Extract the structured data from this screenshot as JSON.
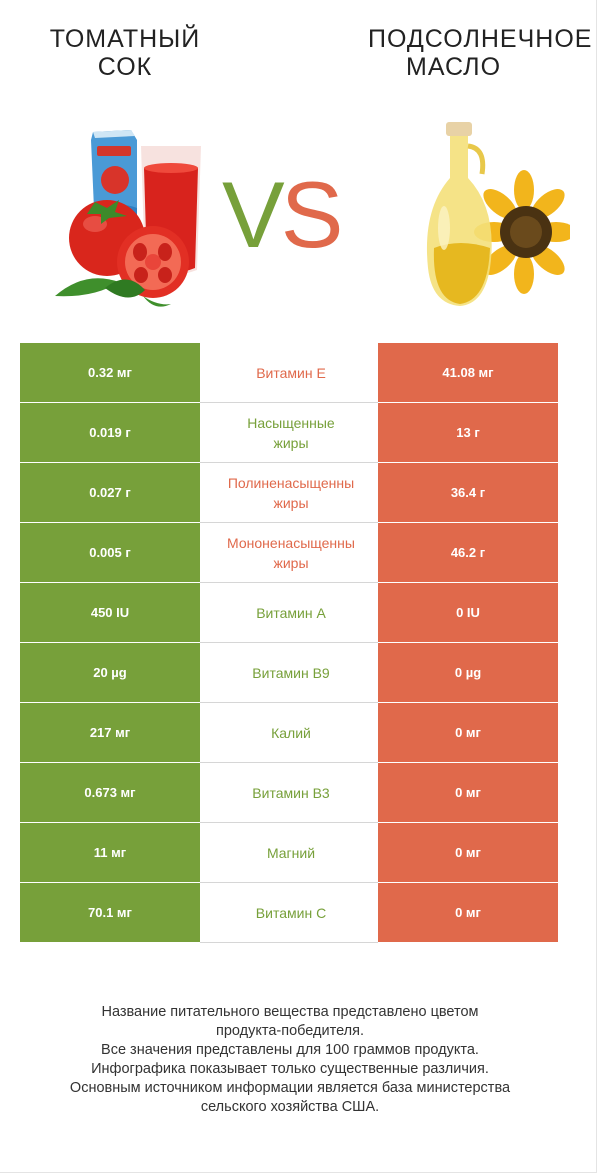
{
  "header": {
    "left_title_line1": "ТОМАТНЫЙ",
    "left_title_line2": "СОК",
    "right_title_line1": "ПОДСОЛНЕЧНОЕ",
    "right_title_line2": "МАСЛО",
    "vs_v": "V",
    "vs_s": "S"
  },
  "colors": {
    "left": "#77a03a",
    "right": "#e0694b"
  },
  "icons": {
    "left": "tomato-juice-illustration",
    "right": "sunflower-oil-illustration"
  },
  "rows": [
    {
      "left": "0.32 мг",
      "label": "Витамин E",
      "label_line2": "",
      "right": "41.08 мг",
      "winner": "right"
    },
    {
      "left": "0.019 г",
      "label": "Насыщенные",
      "label_line2": "жиры",
      "right": "13 г",
      "winner": "left"
    },
    {
      "left": "0.027 г",
      "label": "Полиненасыщенны",
      "label_line2": "жиры",
      "right": "36.4 г",
      "winner": "right"
    },
    {
      "left": "0.005 г",
      "label": "Мононенасыщенны",
      "label_line2": "жиры",
      "right": "46.2 г",
      "winner": "right"
    },
    {
      "left": "450 IU",
      "label": "Витамин A",
      "label_line2": "",
      "right": "0 IU",
      "winner": "left"
    },
    {
      "left": "20 µg",
      "label": "Витамин B9",
      "label_line2": "",
      "right": "0 µg",
      "winner": "left"
    },
    {
      "left": "217 мг",
      "label": "Калий",
      "label_line2": "",
      "right": "0 мг",
      "winner": "left"
    },
    {
      "left": "0.673 мг",
      "label": "Витамин B3",
      "label_line2": "",
      "right": "0 мг",
      "winner": "left"
    },
    {
      "left": "11 мг",
      "label": "Магний",
      "label_line2": "",
      "right": "0 мг",
      "winner": "left"
    },
    {
      "left": "70.1 мг",
      "label": "Витамин C",
      "label_line2": "",
      "right": "0 мг",
      "winner": "left"
    }
  ],
  "footnote": {
    "line1": "Название питательного вещества представлено цветом",
    "line2": "продукта-победителя.",
    "line3": "Все значения представлены для 100 граммов продукта.",
    "line4": "Инфографика показывает только существенные различия.",
    "line5": "Основным источником информации является база министерства",
    "line6": "сельского хозяйства США."
  }
}
